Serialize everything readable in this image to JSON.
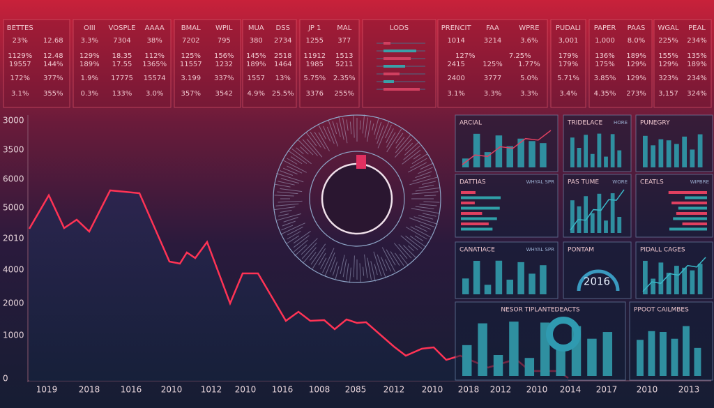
{
  "tables": [
    {
      "headers": [
        "BETTES"
      ],
      "rows": [
        [
          "23%",
          "12.68"
        ],
        [
          "1129%",
          "12.48"
        ],
        [
          "19557",
          "144%"
        ],
        [
          "172%",
          "377%"
        ],
        [
          "3.1%",
          "355%"
        ]
      ]
    },
    {
      "headers": [
        "OIII",
        "VOSPLE",
        "AAAA"
      ],
      "rows": [
        [
          "3.3%",
          "7304",
          "38%"
        ],
        [
          "129%",
          "18.35",
          "112%"
        ],
        [
          "189%",
          "17.55",
          "1365%"
        ],
        [
          "1.9%",
          "17775",
          "15574"
        ],
        [
          "0.3%",
          "133%",
          "3.0%"
        ]
      ]
    },
    {
      "headers": [
        "BMAL",
        "WPIL"
      ],
      "rows": [
        [
          "7202",
          "795"
        ],
        [
          "125%",
          "156%"
        ],
        [
          "11557",
          "1232"
        ],
        [
          "3.199",
          "337%"
        ],
        [
          "357%",
          "3542"
        ]
      ]
    },
    {
      "headers": [
        "MUA",
        "DSS"
      ],
      "rows": [
        [
          "380",
          "2734"
        ],
        [
          "145%",
          "2518"
        ],
        [
          "189%",
          "1464"
        ],
        [
          "1557",
          "13%"
        ],
        [
          "4.9%",
          "25.5%"
        ]
      ]
    },
    {
      "headers": [
        "JP 1",
        "MAL"
      ],
      "rows": [
        [
          "1255",
          "377"
        ],
        [
          "11912",
          "1513"
        ],
        [
          "1985",
          "5211"
        ],
        [
          "5.75%",
          "2.35%"
        ],
        [
          "3376",
          "255%"
        ]
      ]
    },
    {
      "headers": [
        "LODS"
      ],
      "rows": []
    },
    {
      "headers": [
        "PRENCIT",
        "FAA",
        "WPRE"
      ],
      "rows": [
        [
          "1014",
          "3214",
          "3.6%"
        ],
        [
          "127%",
          "7.25%"
        ],
        [
          "2415",
          "125%",
          "1.77%"
        ],
        [
          "2400",
          "3777",
          "5.0%"
        ],
        [
          "3.1%",
          "3.3%",
          "3.3%"
        ]
      ]
    },
    {
      "headers": [
        "PUDALI"
      ],
      "rows": [
        [
          "3,001"
        ],
        [
          "179%"
        ],
        [
          "179%"
        ],
        [
          "5.71%"
        ],
        [
          "3.4%"
        ]
      ]
    },
    {
      "headers": [
        "PAPER",
        "PAAS"
      ],
      "rows": [
        [
          "1,000",
          "8.0%"
        ],
        [
          "136%",
          "189%"
        ],
        [
          "175%",
          "129%"
        ],
        [
          "3.85%",
          "129%"
        ],
        [
          "4.35%",
          "273%"
        ]
      ]
    },
    {
      "headers": [
        "WGAL",
        "PEAL"
      ],
      "rows": [
        [
          "225%",
          "234%"
        ],
        [
          "155%",
          "135%"
        ],
        [
          "129%",
          "189%"
        ],
        [
          "323%",
          "234%"
        ],
        [
          "3,157",
          "324%"
        ]
      ]
    }
  ],
  "main_chart": {
    "y_labels": [
      "3000",
      "3500",
      "6000",
      "5000",
      "2010",
      "4000",
      "2000",
      "1000",
      "0"
    ],
    "x_labels": [
      "1019",
      "2018",
      "1016",
      "2010",
      "1012",
      "2010",
      "1016",
      "1008",
      "2085",
      "2012",
      "2010",
      "2018",
      "2012",
      "2010",
      "2014",
      "2017",
      "2010",
      "2013"
    ]
  },
  "panels": [
    {
      "title": "ARCIAL"
    },
    {
      "title": "TRIDELACE",
      "subtitle": "HORE"
    },
    {
      "title": "PUNEGRY"
    },
    {
      "title": "DATTIAS",
      "subtitle": "WHYAL SPR"
    },
    {
      "title": "PAS TUME",
      "subtitle": "WORE"
    },
    {
      "title": "CEATLS",
      "subtitle": "WIPBRE"
    },
    {
      "title": "CANATIACE",
      "subtitle": "WHYAL SPR"
    },
    {
      "title": "PONTAM",
      "value": "2016"
    },
    {
      "title": "PIDALL CAGES"
    },
    {
      "title": "NESOR TIPLANTEDEACTS"
    },
    {
      "title": "PPOOT CAILMBES"
    }
  ]
}
